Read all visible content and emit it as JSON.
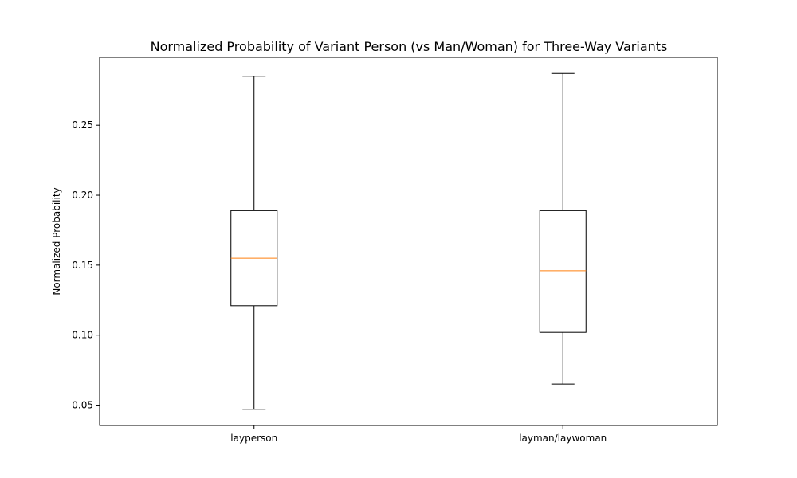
{
  "chart_data": {
    "type": "boxplot",
    "title": "Normalized Probability of Variant Person (vs Man/Woman) for Three-Way Variants",
    "xlabel": "",
    "ylabel": "Normalized Probability",
    "categories": [
      "layperson",
      "layman/laywoman"
    ],
    "boxes": [
      {
        "category": "layperson",
        "whisker_low": 0.047,
        "q1": 0.121,
        "median": 0.155,
        "q3": 0.189,
        "whisker_high": 0.285
      },
      {
        "category": "layman/laywoman",
        "whisker_low": 0.065,
        "q1": 0.102,
        "median": 0.146,
        "q3": 0.189,
        "whisker_high": 0.287
      }
    ],
    "ylim": [
      0.0355,
      0.2985
    ],
    "yticks": [
      0.05,
      0.1,
      0.15,
      0.2,
      0.25
    ],
    "ytick_labels": [
      "0.05",
      "0.10",
      "0.15",
      "0.20",
      "0.25"
    ],
    "grid": false,
    "legend": "none",
    "colors": {
      "box": "#000000",
      "median": "#ff7f0e"
    }
  }
}
